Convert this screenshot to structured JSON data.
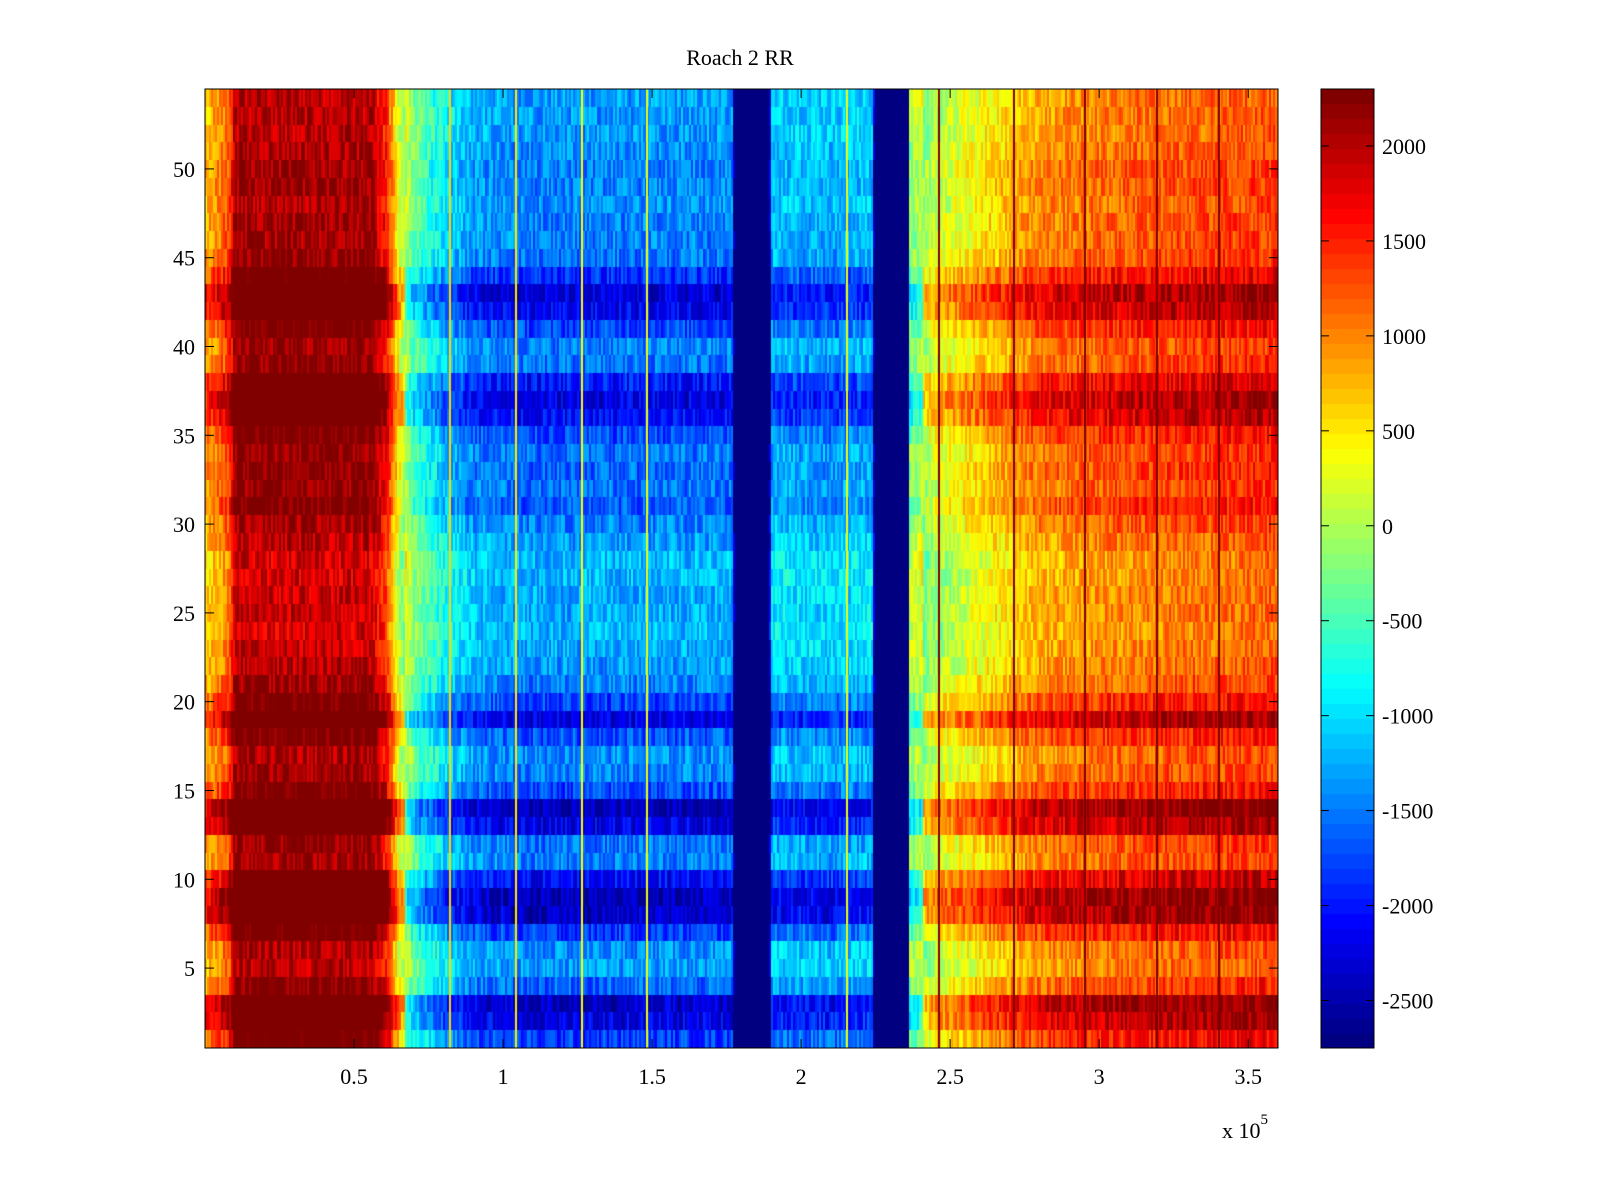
{
  "figure": {
    "title": "Roach 2 RR",
    "x_exponent_base": "x 10",
    "x_exponent_power": "5"
  },
  "chart_data": {
    "type": "heatmap",
    "title": "Roach 2 RR",
    "xlabel": "",
    "ylabel": "",
    "x_multiplier_label": "x 10^5",
    "xlim": [
      0,
      360000
    ],
    "ylim": [
      0.5,
      54.5
    ],
    "x_ticks": [
      50000,
      100000,
      150000,
      200000,
      250000,
      300000,
      350000
    ],
    "x_tick_labels": [
      "0.5",
      "1",
      "1.5",
      "2",
      "2.5",
      "3",
      "3.5"
    ],
    "y_ticks": [
      5,
      10,
      15,
      20,
      25,
      30,
      35,
      40,
      45,
      50
    ],
    "y_tick_labels": [
      "5",
      "10",
      "15",
      "20",
      "25",
      "30",
      "35",
      "40",
      "45",
      "50"
    ],
    "rows": 54,
    "colormap": "jet",
    "clim": [
      -2750,
      2300
    ],
    "colorbar_ticks": [
      -2500,
      -2000,
      -1500,
      -1000,
      -500,
      0,
      500,
      1000,
      1500,
      2000
    ],
    "colorbar_tick_labels": [
      "-2500",
      "-2000",
      "-1500",
      "-1000",
      "-500",
      "0",
      "500",
      "1000",
      "1500",
      "2000"
    ],
    "column_profile": [
      {
        "x": 0,
        "value": 900
      },
      {
        "x": 8000,
        "value": 1400
      },
      {
        "x": 10000,
        "value": 2300
      },
      {
        "x": 56000,
        "value": 2300
      },
      {
        "x": 61000,
        "value": 1700
      },
      {
        "x": 65000,
        "value": 400
      },
      {
        "x": 70000,
        "value": -500
      },
      {
        "x": 80000,
        "value": -1100
      },
      {
        "x": 90000,
        "value": -1500
      },
      {
        "x": 110000,
        "value": -1650
      },
      {
        "x": 177000,
        "value": -1600
      },
      {
        "x": 177500,
        "value": -2750
      },
      {
        "x": 189500,
        "value": -2750
      },
      {
        "x": 190000,
        "value": -1300
      },
      {
        "x": 210000,
        "value": -1400
      },
      {
        "x": 224000,
        "value": -1300
      },
      {
        "x": 224500,
        "value": -2750
      },
      {
        "x": 236000,
        "value": -2750
      },
      {
        "x": 236500,
        "value": -300
      },
      {
        "x": 245000,
        "value": 250
      },
      {
        "x": 262000,
        "value": 700
      },
      {
        "x": 280000,
        "value": 1150
      },
      {
        "x": 310000,
        "value": 1350
      },
      {
        "x": 360000,
        "value": 1550
      }
    ],
    "masked_bands": [
      {
        "x_start": 177500,
        "x_end": 189500,
        "value": -2750
      },
      {
        "x_start": 224500,
        "x_end": 236000,
        "value": -2750
      }
    ],
    "vertical_lines": [
      {
        "x": 82000,
        "value": 600
      },
      {
        "x": 104000,
        "value": 500
      },
      {
        "x": 126000,
        "value": 400
      },
      {
        "x": 148000,
        "value": 300
      },
      {
        "x": 215000,
        "value": 300
      },
      {
        "x": 246000,
        "value": 2300
      },
      {
        "x": 271000,
        "value": 2400
      },
      {
        "x": 295000,
        "value": 2400
      },
      {
        "x": 319000,
        "value": 2400
      },
      {
        "x": 340000,
        "value": 2400
      }
    ],
    "row_intensity": [
      0.55,
      0.85,
      0.95,
      0.4,
      0.2,
      0.25,
      0.55,
      0.95,
      1.0,
      0.75,
      0.3,
      0.35,
      0.85,
      1.0,
      0.5,
      0.3,
      0.25,
      0.45,
      0.85,
      0.5,
      0.3,
      0.2,
      0.15,
      0.1,
      0.15,
      0.15,
      0.1,
      0.1,
      0.2,
      0.3,
      0.45,
      0.35,
      0.4,
      0.35,
      0.5,
      0.75,
      0.85,
      0.7,
      0.35,
      0.3,
      0.5,
      0.8,
      0.9,
      0.6,
      0.35,
      0.3,
      0.3,
      0.25,
      0.3,
      0.3,
      0.25,
      0.2,
      0.2,
      0.2
    ]
  }
}
